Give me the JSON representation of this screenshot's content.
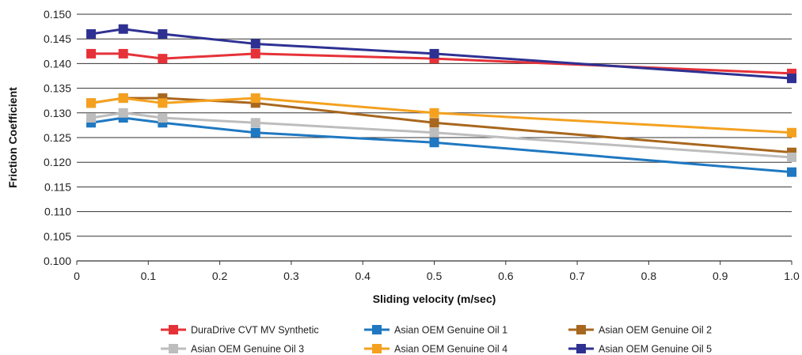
{
  "chart_data": {
    "type": "line",
    "title": "",
    "xlabel": "Sliding velocity (m/sec)",
    "ylabel": "Friction Coefficient",
    "xlim": [
      0,
      1.0
    ],
    "ylim": [
      0.1,
      0.15
    ],
    "x_ticks": [
      "0",
      "0.1",
      "0.2",
      "0.3",
      "0.4",
      "0.5",
      "0.6",
      "0.7",
      "0.8",
      "0.9",
      "1.0"
    ],
    "y_ticks": [
      "0.100",
      "0.105",
      "0.110",
      "0.115",
      "0.120",
      "0.125",
      "0.130",
      "0.135",
      "0.140",
      "0.145",
      "0.150"
    ],
    "grid": "horizontal",
    "legend_position": "bottom",
    "x": [
      0.02,
      0.065,
      0.12,
      0.25,
      0.5,
      1.0
    ],
    "series": [
      {
        "name": "DuraDrive CVT MV Synthetic",
        "color": "#e53238",
        "values": [
          0.142,
          0.142,
          0.141,
          0.142,
          0.141,
          0.138
        ]
      },
      {
        "name": "Asian OEM Genuine Oil 1",
        "color": "#1f78c1",
        "values": [
          0.128,
          0.129,
          0.128,
          0.126,
          0.124,
          0.118
        ]
      },
      {
        "name": "Asian OEM Genuine Oil 2",
        "color": "#a8671e",
        "values": [
          0.132,
          0.133,
          0.133,
          0.132,
          0.128,
          0.122
        ]
      },
      {
        "name": "Asian OEM Genuine Oil 3",
        "color": "#bdbdbd",
        "values": [
          0.129,
          0.13,
          0.129,
          0.128,
          0.126,
          0.121
        ]
      },
      {
        "name": "Asian OEM Genuine Oil 4",
        "color": "#f4a11f",
        "values": [
          0.132,
          0.133,
          0.132,
          0.133,
          0.13,
          0.126
        ]
      },
      {
        "name": "Asian OEM Genuine Oil 5",
        "color": "#2e3192",
        "values": [
          0.146,
          0.147,
          0.146,
          0.144,
          0.142,
          0.137
        ]
      }
    ]
  }
}
